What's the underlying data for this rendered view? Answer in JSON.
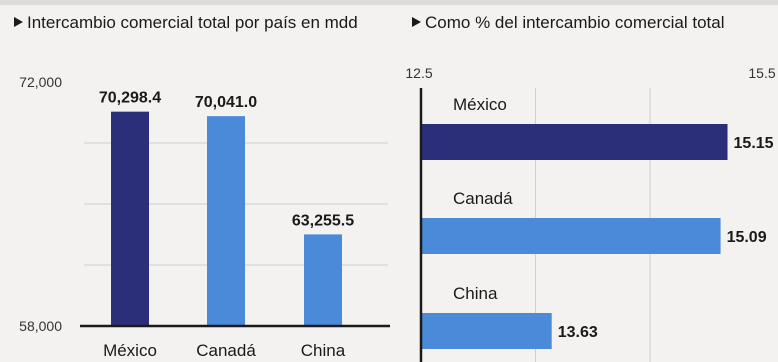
{
  "colors": {
    "mexico": "#2b2f7a",
    "other": "#4a8ad8",
    "grid": "#cfcfcf",
    "axis": "#1a1a1a"
  },
  "chart_data": [
    {
      "type": "bar",
      "title": "Intercambio comercial total por país en mdd",
      "categories": [
        "México",
        "Canadá",
        "China"
      ],
      "values": [
        70298.4,
        70041.0,
        63255.5
      ],
      "value_labels": [
        "70,298.4",
        "70,041.0",
        "63,255.5"
      ],
      "ylim": [
        58000,
        72000
      ],
      "ytick_labels": [
        "72,000",
        "58,000"
      ],
      "grid": true
    },
    {
      "type": "bar",
      "orientation": "horizontal",
      "title": "Como % del intercambio comercial total",
      "categories": [
        "México",
        "Canadá",
        "China"
      ],
      "values": [
        15.15,
        15.09,
        13.63
      ],
      "value_labels": [
        "15.15",
        "15.09",
        "13.63"
      ],
      "xlim": [
        12.5,
        15.5
      ],
      "xtick_labels": [
        "12.5",
        "15.5"
      ],
      "grid": true
    }
  ]
}
